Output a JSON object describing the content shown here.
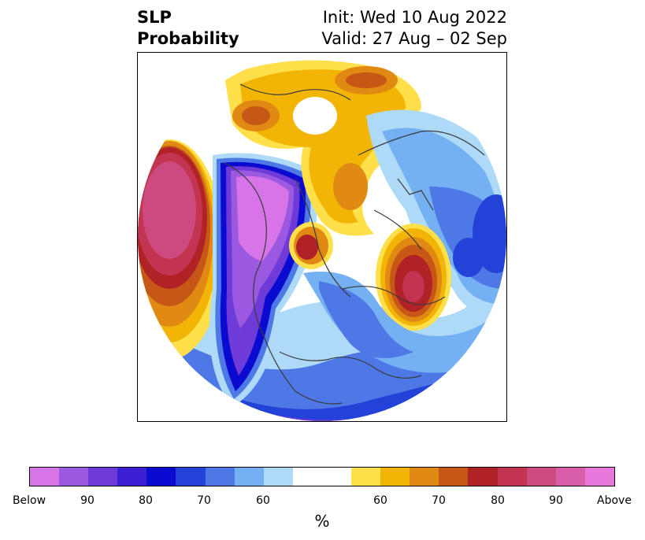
{
  "title": {
    "left_line1": "SLP",
    "left_line2": "Probability",
    "init": "Init: Wed 10 Aug 2022",
    "valid": "Valid: 27 Aug – 02 Sep"
  },
  "colorbar": {
    "unit": "%",
    "below_colors": [
      "#d775e8",
      "#9a59e0",
      "#6e3ad8",
      "#3d1fd6",
      "#0a0ad0",
      "#2542d8",
      "#4d78e6",
      "#74b0f2",
      "#aedaf8"
    ],
    "neutral_color": "#ffffff",
    "above_colors": [
      "#ffe04a",
      "#f3b505",
      "#e08a14",
      "#c75717",
      "#b02226",
      "#c23450",
      "#cd4a7f",
      "#d85daa",
      "#e878dc"
    ],
    "tick_labels": [
      "Below",
      "90",
      "80",
      "70",
      "60",
      "60",
      "70",
      "80",
      "90",
      "Above"
    ]
  }
}
